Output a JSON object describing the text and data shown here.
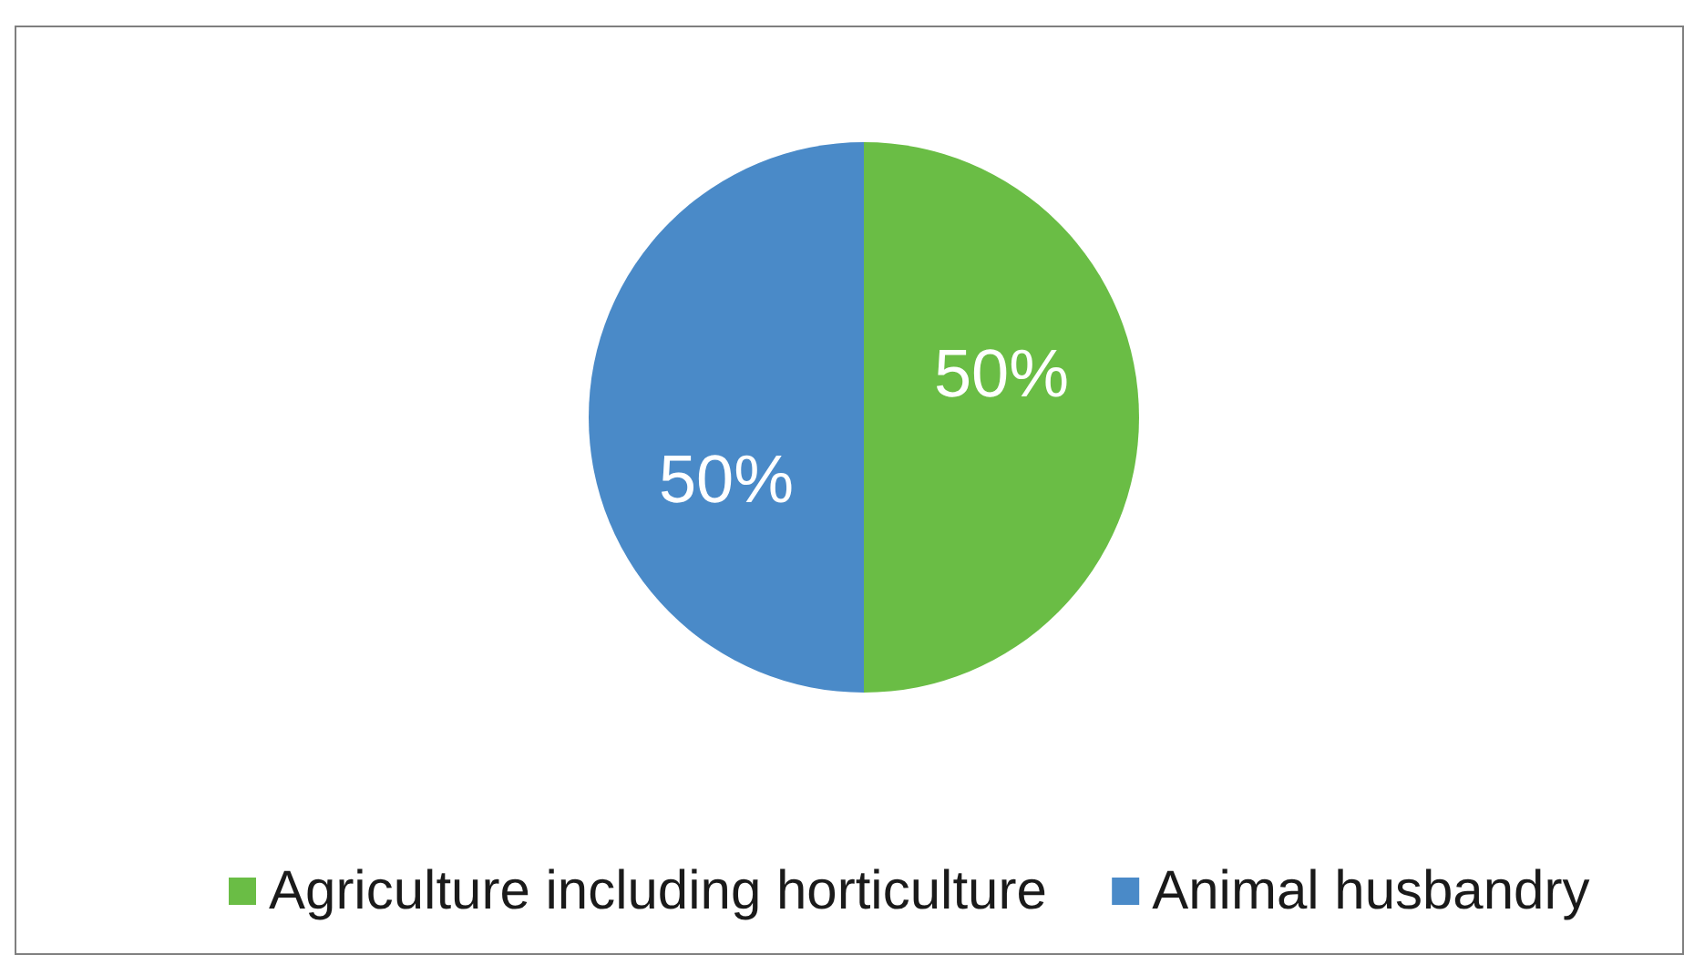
{
  "chart_data": {
    "type": "pie",
    "categories": [
      "Agriculture including horticulture",
      "Animal husbandry"
    ],
    "values": [
      50,
      50
    ],
    "colors": [
      "#6abd45",
      "#4a8ac8"
    ],
    "value_labels": [
      "50%",
      "50%"
    ],
    "legend": "bottom"
  }
}
